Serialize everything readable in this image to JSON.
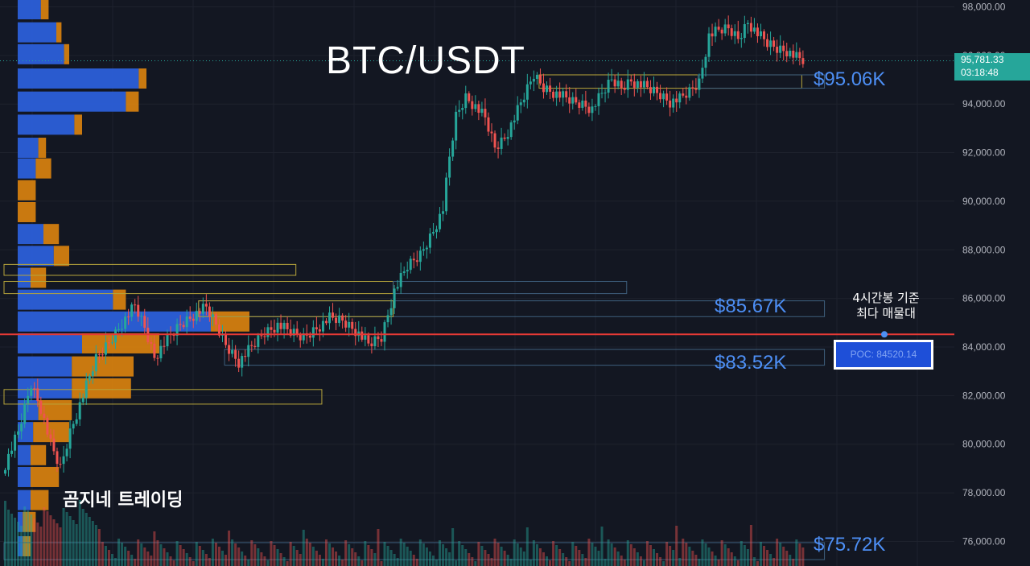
{
  "title": "BTC/USDT",
  "watermark": "곰지네 트레이딩",
  "poc": {
    "note_line1": "4시간봉 기준",
    "note_line2": "최다 매물대",
    "label": "POC: 84520.14",
    "price": 84520.14
  },
  "current_price": {
    "value": "95,781.33",
    "countdown": "03:18:48",
    "price": 95781.33
  },
  "levels": [
    {
      "label": "$95.06K",
      "price": 95060
    },
    {
      "label": "$85.67K",
      "price": 85670
    },
    {
      "label": "$83.52K",
      "price": 83520
    },
    {
      "label": "$75.72K",
      "price": 75720
    }
  ],
  "colors": {
    "up": "#26a69a",
    "down": "#ef5350",
    "profile_up": "#2b5fd9",
    "profile_down": "#d9820f",
    "poc_line": "#e53935",
    "level_text": "#4d8ff5"
  },
  "chart_data": {
    "type": "candlestick",
    "title": "BTC/USDT",
    "y_axis_ticks": [
      "98,000.00",
      "96,000.00",
      "94,000.00",
      "92,000.00",
      "90,000.00",
      "88,000.00",
      "86,000.00",
      "84,000.00",
      "82,000.00",
      "80,000.00",
      "78,000.00",
      "76,000.00"
    ],
    "ylim": [
      75000,
      98500
    ],
    "grid": true,
    "price_path": [
      [
        0,
        79200
      ],
      [
        4,
        80500
      ],
      [
        8,
        82500
      ],
      [
        11,
        81500
      ],
      [
        14,
        80000
      ],
      [
        17,
        79000
      ],
      [
        20,
        80500
      ],
      [
        24,
        82000
      ],
      [
        28,
        83500
      ],
      [
        32,
        84200
      ],
      [
        36,
        85000
      ],
      [
        40,
        85700
      ],
      [
        43,
        84800
      ],
      [
        46,
        83600
      ],
      [
        50,
        84300
      ],
      [
        54,
        84900
      ],
      [
        58,
        85300
      ],
      [
        62,
        85600
      ],
      [
        65,
        84900
      ],
      [
        68,
        84100
      ],
      [
        72,
        83400
      ],
      [
        76,
        84000
      ],
      [
        80,
        84600
      ],
      [
        84,
        84900
      ],
      [
        88,
        84600
      ],
      [
        92,
        84400
      ],
      [
        96,
        84800
      ],
      [
        100,
        85200
      ],
      [
        104,
        85100
      ],
      [
        108,
        84700
      ],
      [
        112,
        84100
      ],
      [
        116,
        84400
      ],
      [
        120,
        86300
      ],
      [
        124,
        87300
      ],
      [
        128,
        87800
      ],
      [
        132,
        88800
      ],
      [
        135,
        89700
      ],
      [
        137,
        91800
      ],
      [
        139,
        93500
      ],
      [
        142,
        94300
      ],
      [
        145,
        93900
      ],
      [
        148,
        93400
      ],
      [
        151,
        92200
      ],
      [
        154,
        92600
      ],
      [
        157,
        93400
      ],
      [
        160,
        94300
      ],
      [
        163,
        95200
      ],
      [
        166,
        94700
      ],
      [
        169,
        94500
      ],
      [
        172,
        94300
      ],
      [
        175,
        94100
      ],
      [
        178,
        94000
      ],
      [
        181,
        93800
      ],
      [
        184,
        94400
      ],
      [
        187,
        95000
      ],
      [
        190,
        94700
      ],
      [
        193,
        95000
      ],
      [
        196,
        94800
      ],
      [
        199,
        94600
      ],
      [
        202,
        94400
      ],
      [
        205,
        94100
      ],
      [
        208,
        94200
      ],
      [
        211,
        94500
      ],
      [
        214,
        94900
      ],
      [
        217,
        96800
      ],
      [
        220,
        97000
      ],
      [
        223,
        97100
      ],
      [
        226,
        96700
      ],
      [
        229,
        97400
      ],
      [
        232,
        96900
      ],
      [
        235,
        96500
      ],
      [
        238,
        96300
      ],
      [
        241,
        96200
      ],
      [
        244,
        95900
      ],
      [
        246,
        95781
      ]
    ],
    "volume_profile": [
      [
        97900,
        0.12,
        0.09
      ],
      [
        96950,
        0.17,
        0.15
      ],
      [
        96050,
        0.2,
        0.18
      ],
      [
        95050,
        0.5,
        0.47
      ],
      [
        94100,
        0.47,
        0.42
      ],
      [
        93150,
        0.25,
        0.22
      ],
      [
        92200,
        0.11,
        0.08
      ],
      [
        91350,
        0.13,
        0.07
      ],
      [
        90450,
        0.07,
        0.0
      ],
      [
        89550,
        0.07,
        0.0
      ],
      [
        88650,
        0.16,
        0.1
      ],
      [
        87750,
        0.2,
        0.14
      ],
      [
        86850,
        0.11,
        0.05
      ],
      [
        85950,
        0.42,
        0.37
      ],
      [
        85050,
        0.9,
        0.75
      ],
      [
        84150,
        0.55,
        0.25
      ],
      [
        83200,
        0.45,
        0.21
      ],
      [
        82300,
        0.44,
        0.21
      ],
      [
        81400,
        0.21,
        0.08
      ],
      [
        80500,
        0.2,
        0.06
      ],
      [
        79550,
        0.11,
        0.05
      ],
      [
        78650,
        0.16,
        0.05
      ],
      [
        77700,
        0.12,
        0.05
      ],
      [
        76800,
        0.07,
        0.02
      ],
      [
        75800,
        0.05,
        0.02
      ]
    ],
    "zones": [
      {
        "top": 95200,
        "bottom": 94650,
        "x_from": 165,
        "x_to": 246,
        "style": "yellow"
      },
      {
        "top": 95200,
        "bottom": 94650,
        "x_from": 214,
        "x_to": 253,
        "style": "blue"
      },
      {
        "top": 87400,
        "bottom": 86950,
        "x_from": 0,
        "x_to": 90,
        "style": "yellow"
      },
      {
        "top": 86700,
        "bottom": 86200,
        "x_from": 0,
        "x_to": 120,
        "style": "yellow"
      },
      {
        "top": 86700,
        "bottom": 86200,
        "x_from": 120,
        "x_to": 192,
        "style": "blue"
      },
      {
        "top": 85900,
        "bottom": 85250,
        "x_from": 60,
        "x_to": 253,
        "style": "blue"
      },
      {
        "top": 85900,
        "bottom": 85250,
        "x_from": 60,
        "x_to": 120,
        "style": "yellow"
      },
      {
        "top": 83900,
        "bottom": 83250,
        "x_from": 68,
        "x_to": 253,
        "style": "blue"
      },
      {
        "top": 82250,
        "bottom": 81650,
        "x_from": 0,
        "x_to": 98,
        "style": "yellow"
      },
      {
        "top": 75950,
        "bottom": 75250,
        "x_from": 0,
        "x_to": 253,
        "style": "blue"
      }
    ]
  }
}
